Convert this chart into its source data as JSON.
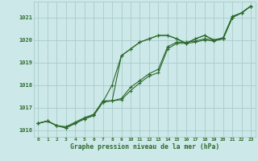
{
  "background_color": "#cce8e8",
  "grid_color": "#aacccc",
  "line_color": "#2d6a2d",
  "marker_color": "#2d6a2d",
  "xlabel": "Graphe pression niveau de la mer (hPa)",
  "ylim": [
    1015.7,
    1021.7
  ],
  "xlim": [
    -0.5,
    23.5
  ],
  "yticks": [
    1016,
    1017,
    1018,
    1019,
    1020,
    1021
  ],
  "xticks": [
    0,
    1,
    2,
    3,
    4,
    5,
    6,
    7,
    8,
    9,
    10,
    11,
    12,
    13,
    14,
    15,
    16,
    17,
    18,
    19,
    20,
    21,
    22,
    23
  ],
  "series": [
    [
      1016.3,
      1016.4,
      1016.2,
      1016.1,
      1016.3,
      1016.5,
      1016.65,
      1017.25,
      1018.0,
      1019.3,
      1019.6,
      1019.9,
      1020.05,
      1020.2,
      1020.2,
      1020.05,
      1019.85,
      1020.05,
      1020.2,
      1020.0,
      1020.05,
      1021.0,
      1021.2,
      1021.5
    ],
    [
      1016.3,
      1016.4,
      1016.2,
      1016.1,
      1016.3,
      1016.5,
      1016.65,
      1017.25,
      1017.3,
      1017.35,
      1017.75,
      1018.1,
      1018.4,
      1018.55,
      1019.6,
      1019.85,
      1019.85,
      1019.9,
      1020.0,
      1019.95,
      1020.05,
      1021.0,
      1021.2,
      1021.5
    ],
    [
      1016.3,
      1016.4,
      1016.2,
      1016.15,
      1016.35,
      1016.55,
      1016.7,
      1017.3,
      1017.3,
      1017.4,
      1017.9,
      1018.2,
      1018.5,
      1018.7,
      1019.7,
      1019.9,
      1019.9,
      1019.95,
      1020.05,
      1020.0,
      1020.1,
      1021.05,
      1021.2,
      1021.5
    ],
    [
      1016.3,
      1016.4,
      1016.2,
      1016.1,
      1016.3,
      1016.5,
      1016.65,
      1017.25,
      1017.3,
      1019.3,
      1019.6,
      1019.9,
      1020.05,
      1020.2,
      1020.2,
      1020.05,
      1019.85,
      1020.05,
      1020.2,
      1020.0,
      1020.05,
      1021.0,
      1021.2,
      1021.5
    ]
  ]
}
